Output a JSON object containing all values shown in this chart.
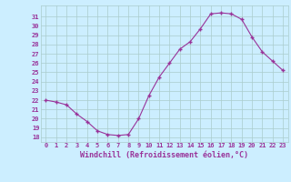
{
  "hours": [
    0,
    1,
    2,
    3,
    4,
    5,
    6,
    7,
    8,
    9,
    10,
    11,
    12,
    13,
    14,
    15,
    16,
    17,
    18,
    19,
    20,
    21,
    22,
    23
  ],
  "values": [
    22.0,
    21.8,
    21.5,
    20.5,
    19.7,
    18.7,
    18.3,
    18.2,
    18.3,
    20.0,
    22.5,
    24.5,
    26.0,
    27.5,
    28.3,
    29.7,
    31.3,
    31.4,
    31.3,
    30.7,
    28.8,
    27.2,
    26.2,
    25.2
  ],
  "line_color": "#993399",
  "marker": "+",
  "bg_color": "#cceeff",
  "grid_color": "#aacccc",
  "axis_color": "#993399",
  "xlabel": "Windchill (Refroidissement éolien,°C)",
  "ylim": [
    17.5,
    32.2
  ],
  "yticks": [
    18,
    19,
    20,
    21,
    22,
    23,
    24,
    25,
    26,
    27,
    28,
    29,
    30,
    31
  ],
  "xticks": [
    0,
    1,
    2,
    3,
    4,
    5,
    6,
    7,
    8,
    9,
    10,
    11,
    12,
    13,
    14,
    15,
    16,
    17,
    18,
    19,
    20,
    21,
    22,
    23
  ]
}
